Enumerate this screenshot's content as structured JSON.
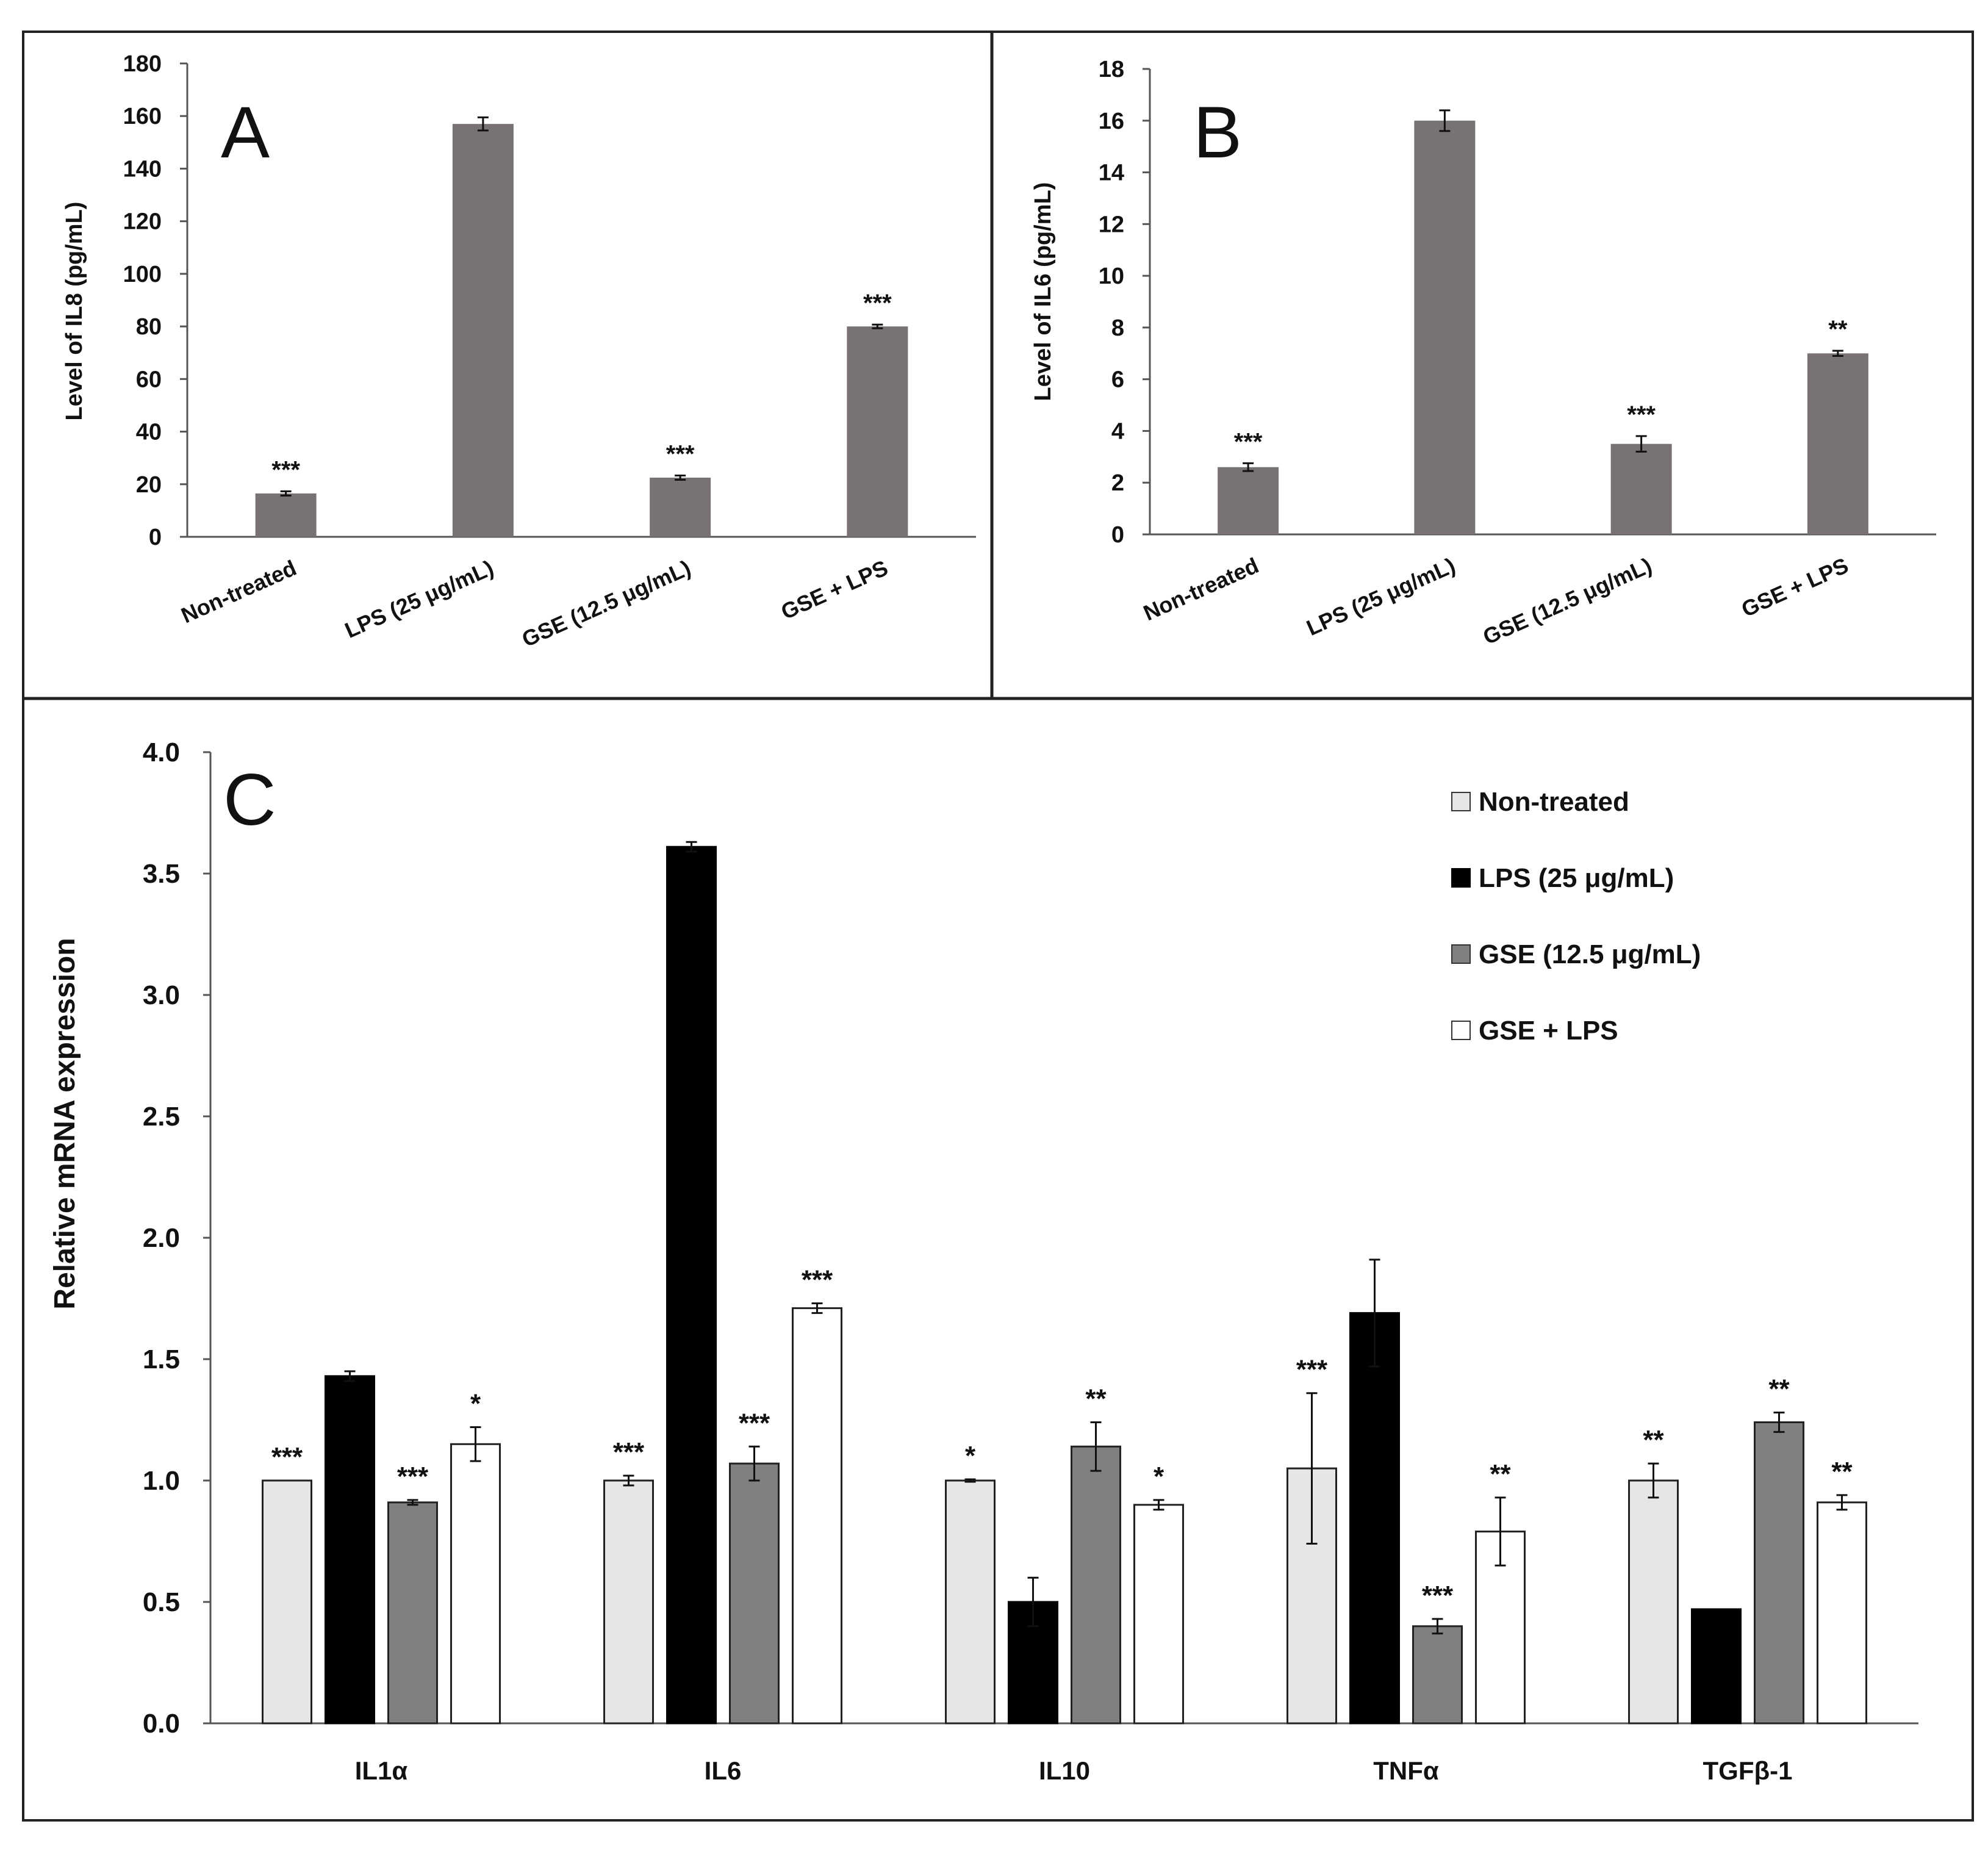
{
  "chart_data": [
    {
      "id": "A",
      "panel_label": "A",
      "type": "bar",
      "ylabel": "Level of IL8 (pg/mL)",
      "ylim": [
        0,
        180
      ],
      "yticks": [
        "0",
        "20",
        "40",
        "60",
        "80",
        "100",
        "120",
        "140",
        "160",
        "180"
      ],
      "categories": [
        "Non-treated",
        "LPS (25 μg/mL)",
        "GSE (12.5 μg/mL)",
        "GSE + LPS"
      ],
      "values": [
        16.5,
        157,
        22.5,
        80
      ],
      "errors": [
        0.8,
        2.5,
        0.8,
        0.7
      ],
      "significance": [
        "***",
        "",
        "***",
        "***"
      ],
      "bar_color": "#787372"
    },
    {
      "id": "B",
      "panel_label": "B",
      "type": "bar",
      "ylabel": "Level of IL6 (pg/mL)",
      "ylim": [
        0,
        18
      ],
      "yticks": [
        "0",
        "2",
        "4",
        "6",
        "8",
        "10",
        "12",
        "14",
        "16",
        "18"
      ],
      "categories": [
        "Non-treated",
        "LPS (25 μg/mL)",
        "GSE (12.5 μg/mL)",
        "GSE + LPS"
      ],
      "values": [
        2.6,
        16.0,
        3.5,
        7.0
      ],
      "errors": [
        0.15,
        0.4,
        0.3,
        0.1
      ],
      "significance": [
        "***",
        "",
        "***",
        "**"
      ],
      "bar_color": "#787372"
    },
    {
      "id": "C",
      "panel_label": "C",
      "type": "bar",
      "ylabel": "Relative mRNA expression",
      "ylim": [
        0,
        4
      ],
      "yticks": [
        "0.0",
        "0.5",
        "1.0",
        "1.5",
        "2.0",
        "2.5",
        "3.0",
        "3.5",
        "4.0"
      ],
      "categories": [
        "IL1α",
        "IL6",
        "IL10",
        "TNFα",
        "TGFβ-1"
      ],
      "series": [
        {
          "name": "Non-treated",
          "color": "#e6e6e6",
          "values": [
            1.0,
            1.0,
            1.0,
            1.05,
            1.0
          ],
          "errors": [
            0.0,
            0.02,
            0.005,
            0.31,
            0.07
          ],
          "significance": [
            "***",
            "***",
            "*",
            "***",
            "**"
          ]
        },
        {
          "name": "LPS (25 μg/mL)",
          "color": "#000000",
          "values": [
            1.43,
            3.61,
            0.5,
            1.69,
            0.47
          ],
          "errors": [
            0.02,
            0.02,
            0.1,
            0.22,
            0.0
          ],
          "significance": [
            "",
            "",
            "",
            "",
            ""
          ]
        },
        {
          "name": "GSE (12.5 μg/mL)",
          "color": "#808080",
          "values": [
            0.91,
            1.07,
            1.14,
            0.4,
            1.24
          ],
          "errors": [
            0.01,
            0.07,
            0.1,
            0.03,
            0.04
          ],
          "significance": [
            "***",
            "***",
            "**",
            "***",
            "**"
          ]
        },
        {
          "name": "GSE + LPS",
          "color": "#ffffff",
          "values": [
            1.15,
            1.71,
            0.9,
            0.79,
            0.91
          ],
          "errors": [
            0.07,
            0.02,
            0.02,
            0.14,
            0.03
          ],
          "significance": [
            "*",
            "***",
            "*",
            "**",
            "**"
          ]
        }
      ]
    }
  ]
}
